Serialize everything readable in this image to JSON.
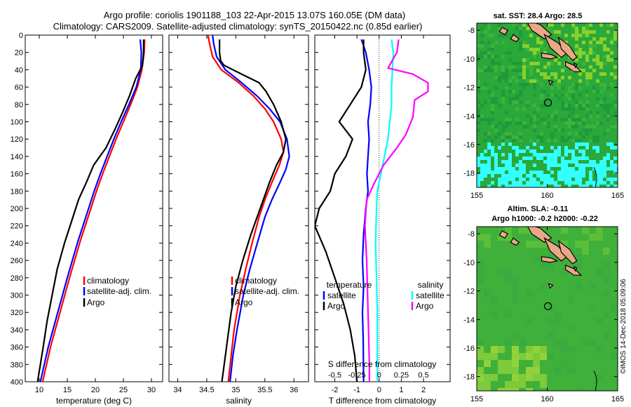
{
  "header": {
    "line1": "Argo profile: coriolis 1901188_103 22-Apr-2015 13.07S 160.05E (DM data)",
    "line2": "Climatology: CARS2009. Satellite-adjusted climatology: synTS_20150422.nc (0.85d earlier)"
  },
  "watermark": "©IMOS 14-Dec-2018 05:09:06",
  "colors": {
    "climatology": "#ff0000",
    "satellite": "#0000ff",
    "argo": "#000000",
    "sat_diff_s": "#00ffff",
    "argo_diff_s": "#ff00ff",
    "land": "#e8a888",
    "ocean": "#22aa33",
    "cyan": "#33ffff"
  },
  "chart_data": [
    {
      "type": "line",
      "id": "temperature",
      "xlabel": "temperature (deg C)",
      "ylabel": "",
      "xlim": [
        7.5,
        32
      ],
      "ylim": [
        400,
        0
      ],
      "xticks": [
        10,
        15,
        20,
        25,
        30
      ],
      "yticks": [
        0,
        20,
        40,
        60,
        80,
        100,
        120,
        140,
        160,
        180,
        200,
        220,
        240,
        260,
        280,
        300,
        320,
        340,
        360,
        380,
        400
      ],
      "legend": [
        "climatology",
        "satellite-adj. clim.",
        "Argo"
      ],
      "series": [
        {
          "name": "climatology",
          "depth": [
            5,
            20,
            40,
            60,
            80,
            100,
            120,
            140,
            160,
            180,
            200,
            240,
            280,
            320,
            360,
            400
          ],
          "values": [
            28.8,
            28.7,
            28.3,
            27.5,
            26.3,
            25.0,
            23.7,
            22.5,
            21.3,
            20.2,
            19.2,
            17.2,
            15.4,
            13.7,
            12.0,
            10.6
          ]
        },
        {
          "name": "satellite-adj. clim.",
          "depth": [
            5,
            20,
            40,
            60,
            80,
            100,
            120,
            140,
            160,
            180,
            200,
            240,
            280,
            320,
            360,
            400
          ],
          "values": [
            28.0,
            28.2,
            28.1,
            27.3,
            26.0,
            24.6,
            23.3,
            22.1,
            20.9,
            19.8,
            18.8,
            16.8,
            15.0,
            13.3,
            11.6,
            10.2
          ]
        },
        {
          "name": "Argo",
          "depth": [
            5,
            20,
            35,
            50,
            70,
            90,
            110,
            130,
            150,
            170,
            190,
            210,
            240,
            270,
            300,
            330,
            360,
            400
          ],
          "values": [
            28.6,
            28.6,
            28.4,
            27.2,
            26.1,
            24.8,
            23.4,
            21.9,
            19.7,
            18.4,
            17.0,
            16.0,
            14.5,
            13.2,
            12.3,
            11.4,
            10.7,
            9.7
          ]
        }
      ]
    },
    {
      "type": "line",
      "id": "salinity",
      "xlabel": "salinity",
      "ylabel": "",
      "xlim": [
        33.85,
        36.25
      ],
      "ylim": [
        400,
        0
      ],
      "xticks": [
        34,
        34.5,
        35,
        35.5,
        36
      ],
      "legend": [
        "climatology",
        "satellite-adj. clim.",
        "Argo"
      ],
      "series": [
        {
          "name": "climatology",
          "depth": [
            0,
            10,
            25,
            40,
            55,
            70,
            85,
            100,
            120,
            135,
            150,
            170,
            190,
            210,
            240,
            270,
            300,
            340,
            370,
            400
          ],
          "values": [
            34.52,
            34.55,
            34.6,
            34.75,
            35.05,
            35.3,
            35.5,
            35.65,
            35.78,
            35.82,
            35.75,
            35.62,
            35.5,
            35.4,
            35.28,
            35.17,
            35.07,
            34.97,
            34.92,
            34.87
          ]
        },
        {
          "name": "satellite-adj. clim.",
          "depth": [
            0,
            10,
            25,
            40,
            55,
            70,
            85,
            100,
            120,
            140,
            155,
            170,
            190,
            210,
            240,
            270,
            300,
            340,
            370,
            400
          ],
          "values": [
            34.6,
            34.62,
            34.67,
            34.82,
            35.1,
            35.36,
            35.58,
            35.76,
            35.88,
            35.92,
            35.86,
            35.76,
            35.62,
            35.5,
            35.37,
            35.24,
            35.13,
            35.02,
            34.95,
            34.9
          ]
        },
        {
          "name": "Argo",
          "depth": [
            5,
            20,
            30,
            35,
            45,
            55,
            65,
            80,
            100,
            120,
            135,
            150,
            170,
            200,
            230,
            260,
            290,
            320,
            350,
            380,
            400
          ],
          "values": [
            34.72,
            34.72,
            34.74,
            34.8,
            35.1,
            35.4,
            35.52,
            35.65,
            35.78,
            35.86,
            35.82,
            35.7,
            35.58,
            35.42,
            35.26,
            35.12,
            35.0,
            34.92,
            34.86,
            34.8,
            34.76
          ]
        }
      ]
    },
    {
      "type": "line",
      "id": "difference",
      "xlabel": "T difference from climatology",
      "x2label": "S difference from climatology",
      "xlim": [
        -2.9,
        3.2
      ],
      "ylim": [
        400,
        0
      ],
      "xticks": [
        -2,
        -1,
        0,
        1,
        2
      ],
      "x2ticks_values": [
        -0.5,
        -0.25,
        0,
        0.25,
        0.5
      ],
      "x2ticks_labels": [
        "-0.5",
        "-0.25",
        "0",
        "0.25",
        "0.5"
      ],
      "legend_headers": [
        "temperature",
        "salinity"
      ],
      "legend": [
        "satellite",
        "Argo",
        "satellite",
        "Argo"
      ],
      "series": [
        {
          "name": "T satellite",
          "depth": [
            5,
            20,
            40,
            60,
            80,
            100,
            120,
            140,
            160,
            180,
            200,
            230,
            260,
            290,
            320,
            350,
            400
          ],
          "values": [
            -0.8,
            -0.6,
            -0.45,
            -0.35,
            -0.4,
            -0.5,
            -0.45,
            -0.5,
            -0.55,
            -0.5,
            -0.6,
            -0.7,
            -0.75,
            -0.7,
            -0.75,
            -0.72,
            -0.7
          ]
        },
        {
          "name": "T Argo",
          "depth": [
            5,
            20,
            40,
            60,
            80,
            100,
            120,
            140,
            160,
            180,
            200,
            220,
            250,
            280,
            310,
            340,
            370,
            400
          ],
          "values": [
            -0.7,
            -0.7,
            -0.6,
            -0.8,
            -1.3,
            -1.8,
            -1.2,
            -1.5,
            -2.0,
            -2.2,
            -2.7,
            -2.9,
            -2.4,
            -2.0,
            -1.6,
            -1.3,
            -1.1,
            -1.0
          ]
        },
        {
          "name": "S satellite",
          "depth": [
            5,
            20,
            40,
            60,
            80,
            100,
            120,
            140,
            160,
            180,
            200,
            240,
            280,
            320,
            360,
            400
          ],
          "values": [
            0.14,
            0.16,
            0.15,
            0.14,
            0.14,
            0.12,
            0.1,
            0.06,
            0.02,
            -0.02,
            -0.03,
            -0.04,
            -0.03,
            -0.02,
            -0.02,
            -0.02
          ]
        },
        {
          "name": "S Argo",
          "depth": [
            5,
            20,
            38,
            45,
            55,
            65,
            75,
            95,
            115,
            130,
            150,
            170,
            190,
            220,
            260,
            300,
            340,
            380,
            400
          ],
          "values": [
            0.22,
            0.2,
            0.1,
            0.38,
            0.55,
            0.55,
            0.4,
            0.38,
            0.3,
            0.2,
            0.05,
            -0.05,
            -0.14,
            -0.16,
            -0.14,
            -0.13,
            -0.12,
            -0.11,
            -0.11
          ]
        }
      ]
    },
    {
      "type": "heatmap",
      "id": "sst_map",
      "title": "sat. SST: 28.4 Argo: 28.5",
      "xlim": [
        155,
        165
      ],
      "ylim": [
        -19,
        -7.5
      ],
      "xticks": [
        155,
        160,
        165
      ],
      "yticks": [
        -8,
        -10,
        -12,
        -14,
        -16,
        -18
      ],
      "argo_lon": 160.05,
      "argo_lat": -13.07
    },
    {
      "type": "heatmap",
      "id": "sla_map",
      "title1": "Altim. SLA: -0.11",
      "title2": "Argo h1000: -0.2 h2000: -0.22",
      "xlim": [
        155,
        165
      ],
      "ylim": [
        -19,
        -7.5
      ],
      "xticks": [
        155,
        160,
        165
      ],
      "yticks": [
        -8,
        -10,
        -12,
        -14,
        -16,
        -18
      ],
      "argo_lon": 160.05,
      "argo_lat": -13.07
    }
  ]
}
